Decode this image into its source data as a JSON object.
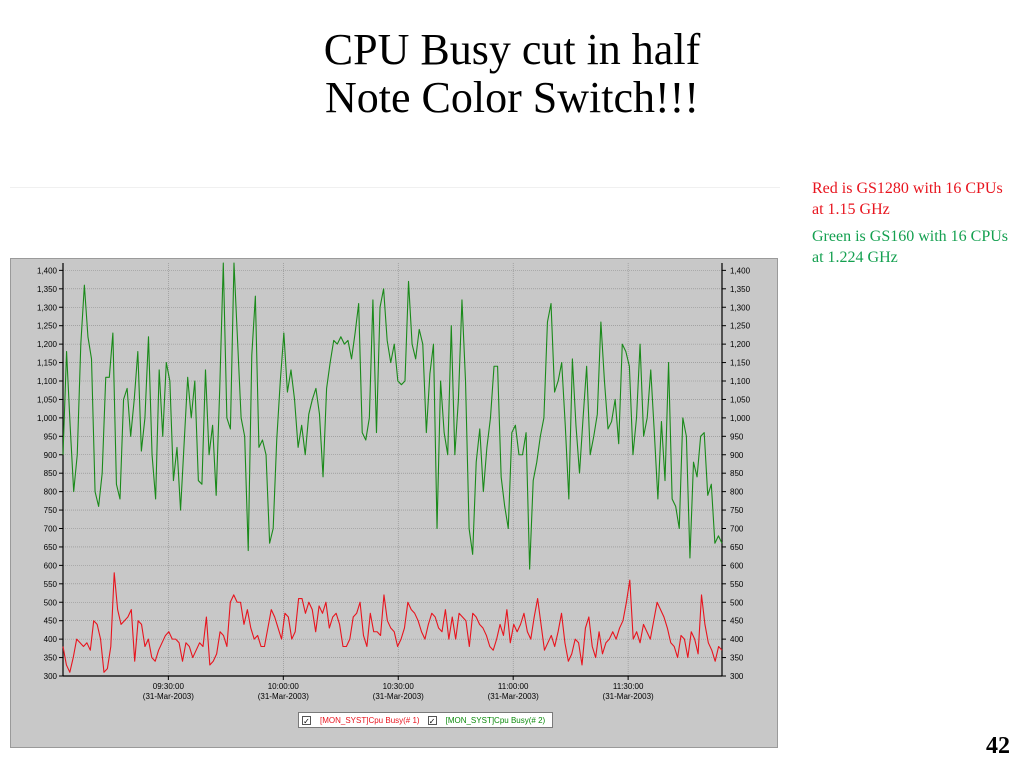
{
  "slide": {
    "title_line1": "CPU Busy cut in half",
    "title_line2": "Note Color Switch!!!",
    "note_red": "Red is GS1280 with 16 CPUs at 1.15 GHz",
    "note_green": "Green is GS160 with 16 CPUs at 1.224 GHz",
    "page_number": "42"
  },
  "colors": {
    "red_series": "#e8141e",
    "green_series": "#1a8a1a",
    "plot_background": "#c8c8c8"
  },
  "chart_data": {
    "type": "line",
    "title": "",
    "xlabel": "",
    "ylabel": "",
    "ylim": [
      300,
      1420
    ],
    "yticks": [
      300,
      350,
      400,
      450,
      500,
      550,
      600,
      650,
      700,
      750,
      800,
      850,
      900,
      950,
      1000,
      1050,
      1100,
      1150,
      1200,
      1250,
      1300,
      1350,
      1400
    ],
    "ytick_labels": [
      "300",
      "350",
      "400",
      "450",
      "500",
      "550",
      "600",
      "650",
      "700",
      "750",
      "800",
      "850",
      "900",
      "950",
      "1,000",
      "1,050",
      "1,100",
      "1,150",
      "1,200",
      "1,250",
      "1,300",
      "1,350",
      "1,400"
    ],
    "x_range": [
      "09:02:30",
      "11:54:30"
    ],
    "xticks": [
      {
        "time": "09:30:00",
        "date": "(31-Mar-2003)"
      },
      {
        "time": "10:00:00",
        "date": "(31-Mar-2003)"
      },
      {
        "time": "10:30:00",
        "date": "(31-Mar-2003)"
      },
      {
        "time": "11:00:00",
        "date": "(31-Mar-2003)"
      },
      {
        "time": "11:30:00",
        "date": "(31-Mar-2003)"
      }
    ],
    "grid": true,
    "legend_position": "bottom-center",
    "series": [
      {
        "name": "[MON_SYST]Cpu Busy(# 1)",
        "color": "#e8141e",
        "values": [
          380,
          330,
          310,
          350,
          400,
          390,
          380,
          390,
          370,
          450,
          440,
          400,
          310,
          320,
          380,
          580,
          480,
          440,
          450,
          460,
          480,
          340,
          450,
          440,
          380,
          400,
          350,
          340,
          370,
          390,
          410,
          420,
          400,
          400,
          390,
          340,
          390,
          380,
          350,
          370,
          390,
          380,
          460,
          330,
          340,
          360,
          420,
          410,
          380,
          500,
          520,
          500,
          500,
          440,
          480,
          430,
          400,
          410,
          380,
          380,
          430,
          480,
          460,
          430,
          400,
          470,
          460,
          400,
          420,
          510,
          510,
          470,
          500,
          480,
          420,
          490,
          470,
          500,
          430,
          460,
          470,
          440,
          380,
          380,
          400,
          460,
          470,
          500,
          410,
          380,
          470,
          420,
          420,
          410,
          520,
          450,
          430,
          420,
          380,
          400,
          430,
          500,
          480,
          470,
          450,
          420,
          400,
          440,
          470,
          460,
          430,
          420,
          480,
          400,
          460,
          400,
          470,
          460,
          450,
          380,
          470,
          460,
          440,
          430,
          410,
          380,
          370,
          400,
          440,
          410,
          480,
          390,
          440,
          420,
          440,
          470,
          420,
          400,
          460,
          510,
          440,
          370,
          390,
          410,
          380,
          420,
          470,
          390,
          340,
          360,
          400,
          390,
          330,
          430,
          460,
          380,
          350,
          420,
          360,
          390,
          400,
          420,
          400,
          430,
          450,
          500,
          560,
          400,
          420,
          390,
          440,
          420,
          400,
          450,
          500,
          480,
          460,
          430,
          390,
          380,
          350,
          410,
          400,
          350,
          420,
          400,
          360,
          520,
          440,
          390,
          370,
          340,
          380,
          370
        ]
      },
      {
        "name": "[MON_SYST]Cpu Busy(# 2)",
        "color": "#1a8a1a",
        "values": [
          900,
          1180,
          980,
          800,
          900,
          1200,
          1360,
          1220,
          1160,
          800,
          760,
          850,
          1110,
          1110,
          1230,
          820,
          780,
          1050,
          1080,
          950,
          1050,
          1180,
          910,
          1000,
          1220,
          900,
          780,
          1130,
          950,
          1150,
          1100,
          830,
          920,
          750,
          930,
          1110,
          1000,
          1100,
          830,
          820,
          1130,
          900,
          980,
          790,
          1080,
          1440,
          1000,
          970,
          1430,
          1210,
          1000,
          950,
          640,
          1170,
          1330,
          920,
          940,
          900,
          660,
          700,
          940,
          1100,
          1230,
          1070,
          1130,
          1050,
          920,
          980,
          900,
          1010,
          1050,
          1080,
          1010,
          840,
          1080,
          1150,
          1210,
          1200,
          1220,
          1200,
          1210,
          1160,
          1230,
          1310,
          960,
          940,
          1000,
          1320,
          960,
          1300,
          1350,
          1210,
          1150,
          1200,
          1100,
          1090,
          1100,
          1370,
          1200,
          1160,
          1240,
          1200,
          960,
          1120,
          1200,
          700,
          1100,
          960,
          900,
          1250,
          900,
          1050,
          1320,
          1100,
          700,
          630,
          880,
          970,
          800,
          920,
          1000,
          1140,
          1140,
          840,
          760,
          700,
          960,
          980,
          900,
          900,
          960,
          590,
          830,
          880,
          950,
          1000,
          1260,
          1310,
          1070,
          1100,
          1150,
          980,
          780,
          1160,
          980,
          850,
          1000,
          1140,
          900,
          950,
          1010,
          1260,
          1100,
          970,
          990,
          1050,
          930,
          1200,
          1180,
          1140,
          900,
          1000,
          1200,
          950,
          1000,
          1130,
          960,
          780,
          990,
          830,
          1150,
          780,
          760,
          700,
          1000,
          950,
          620,
          880,
          840,
          950,
          960,
          790,
          820,
          660,
          680,
          660
        ]
      }
    ]
  }
}
